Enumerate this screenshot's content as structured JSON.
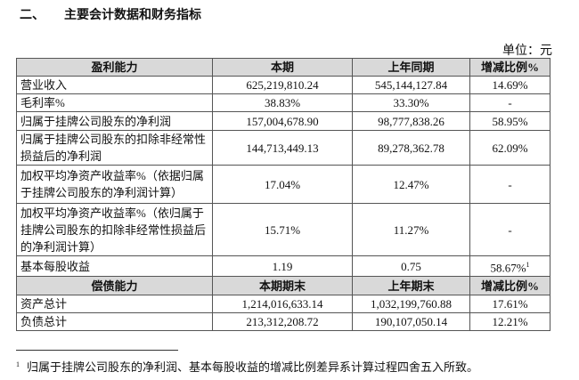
{
  "header": {
    "section": "二、",
    "title": "主要会计数据和财务指标"
  },
  "unit": "单位：元",
  "table": {
    "rows": [
      [
        "盈利能力",
        "本期",
        "上年同期",
        "增减比例%"
      ],
      [
        "营业收入",
        "625,219,810.24",
        "545,144,127.84",
        "14.69%"
      ],
      [
        "毛利率%",
        "38.83%",
        "33.30%",
        "-"
      ],
      [
        "归属于挂牌公司股东的净利润",
        "157,004,678.90",
        "98,777,838.26",
        "58.95%"
      ],
      [
        "归属于挂牌公司股东的扣除非经常性损益后的净利润",
        "144,713,449.13",
        "89,278,362.78",
        "62.09%"
      ],
      [
        "加权平均净资产收益率%（依据归属于挂牌公司股东的净利润计算）",
        "17.04%",
        "12.47%",
        "-"
      ],
      [
        "加权平均净资产收益率%（依归属于挂牌公司股东的扣除非经常性损益后的净利润计算）",
        "15.71%",
        "11.27%",
        "-"
      ],
      [
        "基本每股收益",
        "1.19",
        "0.75",
        {
          "text": "58.67%",
          "sup": "1"
        }
      ],
      [
        "偿债能力",
        "本期期末",
        "上年期末",
        "增减比例%"
      ],
      [
        "资产总计",
        "1,214,016,633.14",
        "1,032,199,760.88",
        "17.61%"
      ],
      [
        "负债总计",
        "213,312,208.72",
        "190,107,050.14",
        "12.21%"
      ]
    ]
  },
  "footnote": {
    "marker": "1",
    "text": "归属于挂牌公司股东的净利润、基本每股收益的增减比例差异系计算过程四舍五入所致。"
  }
}
